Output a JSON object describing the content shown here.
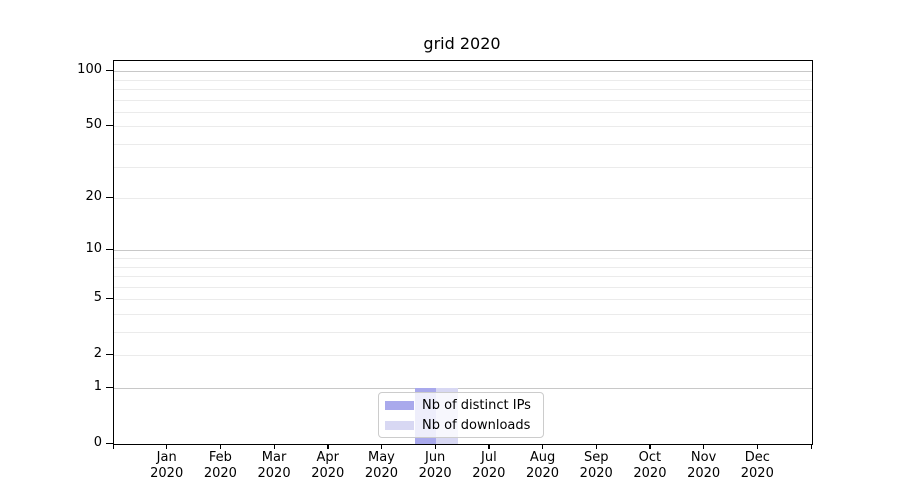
{
  "figure": {
    "title": "grid 2020"
  },
  "chart_data": {
    "type": "bar",
    "title": "grid 2020",
    "x_months": [
      "Jan",
      "Feb",
      "Mar",
      "Apr",
      "May",
      "Jun",
      "Jul",
      "Aug",
      "Sep",
      "Oct",
      "Nov",
      "Dec"
    ],
    "x_year": "2020",
    "series": [
      {
        "name": "Nb of distinct IPs",
        "color": "#a9a9ec",
        "values": [
          0,
          0,
          0,
          0,
          0,
          1,
          0,
          0,
          0,
          0,
          0,
          0
        ]
      },
      {
        "name": "Nb of downloads",
        "color": "#d8d8f3",
        "values": [
          0,
          0,
          0,
          0,
          0,
          1,
          0,
          0,
          0,
          0,
          0,
          0
        ]
      }
    ],
    "y_axis": {
      "scale": "log1p",
      "ylim": [
        0,
        113.6
      ],
      "ticks": [
        {
          "v": 0,
          "label": "0"
        },
        {
          "v": 1,
          "label": "1"
        },
        {
          "v": 2,
          "label": "2"
        },
        {
          "v": 5,
          "label": "5"
        },
        {
          "v": 10,
          "label": "10"
        },
        {
          "v": 20,
          "label": "20"
        },
        {
          "v": 50,
          "label": "50"
        },
        {
          "v": 100,
          "label": "100"
        }
      ],
      "major_grid_values": [
        1,
        10,
        100
      ],
      "minor_grid_values": [
        2,
        3,
        4,
        5,
        6,
        7,
        8,
        9,
        20,
        30,
        40,
        50,
        60,
        70,
        80,
        90
      ]
    },
    "legend": {
      "position": "lower center"
    },
    "grid": true,
    "x_edge_ticks": true
  },
  "colors": {
    "background": "#ffffff",
    "axis": "#000000",
    "major_grid": "#c8c8c8",
    "minor_grid": "#ebebeb",
    "bar_distinct_ips": "#a9a9ec",
    "bar_downloads": "#d8d8f3"
  }
}
